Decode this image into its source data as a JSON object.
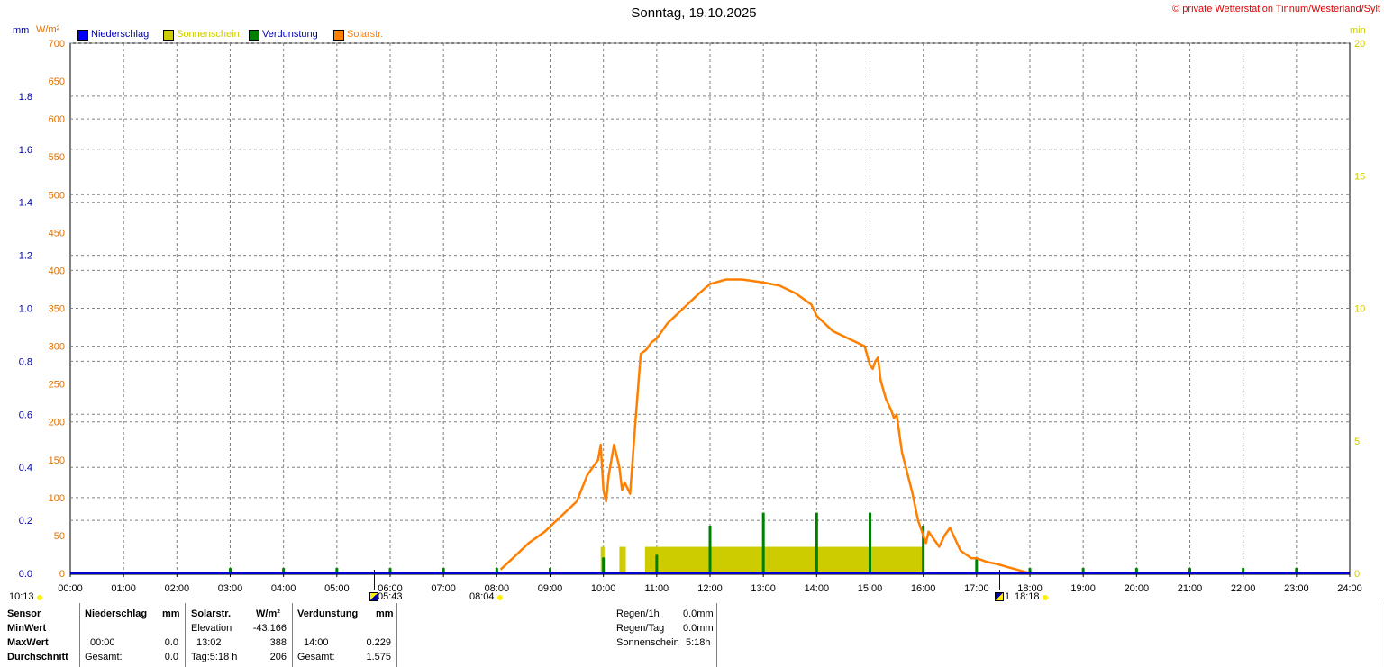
{
  "title": "Sonntag, 19.10.2025",
  "copyright": "© private Wetterstation Tinnum/Westerland/Sylt",
  "unit_labels": {
    "left_mm": "mm",
    "left_wm2": "W/m²",
    "right_min": "min"
  },
  "legend": [
    {
      "label": "Niederschlag",
      "swatch": "#0000ff",
      "text_color": "#0000aa"
    },
    {
      "label": "Sonnenschein",
      "swatch": "#cccc00",
      "text_color": "#cccc00"
    },
    {
      "label": "Verdunstung",
      "swatch": "#008000",
      "text_color": "#0000aa"
    },
    {
      "label": "Solarstr.",
      "swatch": "#ff8000",
      "text_color": "#ff8000"
    }
  ],
  "colors": {
    "solar": "#ff8000",
    "sunshine": "#cccc00",
    "evaporation": "#008000",
    "rain": "#0000ff",
    "mm_axis": "#0000aa",
    "wm2_axis": "#e07000",
    "min_axis": "#cccc00",
    "grid": "#808080"
  },
  "axes": {
    "x_ticks": [
      "00:00",
      "01:00",
      "02:00",
      "03:00",
      "04:00",
      "05:00",
      "06:00",
      "07:00",
      "08:00",
      "09:00",
      "10:00",
      "11:00",
      "12:00",
      "13:00",
      "14:00",
      "15:00",
      "16:00",
      "17:00",
      "18:00",
      "19:00",
      "20:00",
      "21:00",
      "22:00",
      "23:00",
      "24:00"
    ],
    "mm_ticks": [
      "0.0",
      "0.2",
      "0.4",
      "0.6",
      "0.8",
      "1.0",
      "1.2",
      "1.4",
      "1.6",
      "1.8"
    ],
    "wm2_ticks": [
      "0",
      "50",
      "100",
      "150",
      "200",
      "250",
      "300",
      "350",
      "400",
      "450",
      "500",
      "550",
      "600",
      "650",
      "700"
    ],
    "min_ticks": [
      "0",
      "5",
      "10",
      "15",
      "20"
    ]
  },
  "sun_events": {
    "left_time": "10:13",
    "sunrise": "05:43",
    "sunrise_prefix": "",
    "solar_start": "08:04",
    "sunset": "18:18",
    "sunset_prefix": "1"
  },
  "stats": {
    "headers": {
      "sensor": "Sensor",
      "niederschlag": "Niederschlag",
      "mm": "mm",
      "solarstr": "Solarstr.",
      "wm2": "W/m²",
      "verdunstung": "Verdunstung",
      "mm2": "mm"
    },
    "rows": [
      {
        "label": "MinWert",
        "n_time": "",
        "n_val": "",
        "s_time": "Elevation",
        "s_val": "-43.166",
        "v_time": "",
        "v_val": ""
      },
      {
        "label": "MaxWert",
        "n_time": "00:00",
        "n_val": "0.0",
        "s_time": "13:02",
        "s_val": "388",
        "v_time": "14:00",
        "v_val": "0.229"
      },
      {
        "label": "Durchschnitt",
        "n_time": "Gesamt:",
        "n_val": "0.0",
        "s_time": "Tag:5:18 h",
        "s_val": "206",
        "v_time": "Gesamt:",
        "v_val": "1.575"
      }
    ],
    "summary": [
      {
        "label": "Regen/1h",
        "value": "0.0mm"
      },
      {
        "label": "Regen/Tag",
        "value": "0.0mm"
      },
      {
        "label": "Sonnenschein",
        "value": "5:18h"
      }
    ]
  },
  "chart_data": {
    "type": "line",
    "title": "Sonntag, 19.10.2025",
    "xlabel": "",
    "xlim": [
      0,
      24
    ],
    "ylim_wm2": [
      0,
      700
    ],
    "ylim_mm": [
      0,
      2.0
    ],
    "ylim_min": [
      0,
      20
    ],
    "series": [
      {
        "name": "Solarstr.",
        "unit": "W/m²",
        "x": [
          8.07,
          8.3,
          8.6,
          8.9,
          9.2,
          9.5,
          9.7,
          9.9,
          9.95,
          10.0,
          10.05,
          10.1,
          10.2,
          10.3,
          10.35,
          10.4,
          10.5,
          10.6,
          10.7,
          10.8,
          10.85,
          10.9,
          11.0,
          11.2,
          11.5,
          11.8,
          12.0,
          12.3,
          12.6,
          12.9,
          13.0,
          13.3,
          13.6,
          13.9,
          14.0,
          14.3,
          14.6,
          14.9,
          15.0,
          15.05,
          15.1,
          15.15,
          15.2,
          15.3,
          15.4,
          15.45,
          15.5,
          15.6,
          15.8,
          15.9,
          15.95,
          16.0,
          16.05,
          16.1,
          16.2,
          16.3,
          16.4,
          16.5,
          16.6,
          16.7,
          16.8,
          16.9,
          17.0,
          17.2,
          17.4,
          17.6,
          17.8,
          18.0
        ],
        "y": [
          5,
          20,
          40,
          55,
          75,
          95,
          130,
          150,
          170,
          110,
          95,
          130,
          170,
          140,
          110,
          120,
          105,
          200,
          290,
          295,
          300,
          305,
          310,
          330,
          350,
          370,
          382,
          388,
          388,
          385,
          384,
          380,
          370,
          355,
          340,
          320,
          310,
          300,
          275,
          270,
          280,
          285,
          255,
          230,
          215,
          205,
          210,
          160,
          105,
          70,
          60,
          50,
          40,
          55,
          45,
          35,
          50,
          60,
          45,
          30,
          25,
          20,
          20,
          15,
          12,
          8,
          4,
          0
        ]
      },
      {
        "name": "Sonnenschein",
        "unit": "min",
        "x": [
          10.0,
          10.25,
          10.7,
          16.0
        ],
        "y": [
          1,
          1,
          1,
          1
        ],
        "note_ranges": [
          [
            9.95,
            10.02
          ],
          [
            10.3,
            10.42
          ],
          [
            10.78,
            16.02
          ]
        ]
      },
      {
        "name": "Verdunstung",
        "unit": "mm",
        "x": [
          3,
          4,
          5,
          6,
          7,
          8,
          9,
          10,
          11,
          12,
          13,
          14,
          15,
          16,
          17,
          18,
          19,
          20,
          21,
          22,
          23
        ],
        "y": [
          0.02,
          0.02,
          0.02,
          0.02,
          0.02,
          0.02,
          0.02,
          0.06,
          0.07,
          0.18,
          0.229,
          0.229,
          0.229,
          0.18,
          0.06,
          0.02,
          0.02,
          0.02,
          0.02,
          0.02,
          0.02
        ]
      },
      {
        "name": "Niederschlag",
        "unit": "mm",
        "x": [],
        "y": []
      }
    ]
  }
}
